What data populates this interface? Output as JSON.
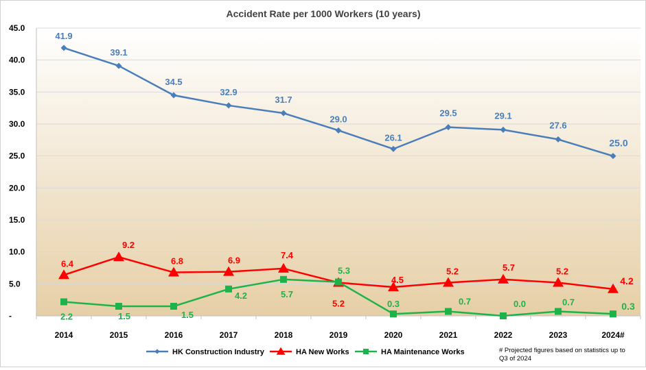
{
  "chart_data": {
    "type": "line",
    "title": "Accident Rate per 1000 Workers (10 years)",
    "categories": [
      "2014",
      "2015",
      "2016",
      "2017",
      "2018",
      "2019",
      "2020",
      "2021",
      "2022",
      "2023",
      "2024#"
    ],
    "y_tick_labels": [
      "-",
      "5.0",
      "10.0",
      "15.0",
      "20.0",
      "25.0",
      "30.0",
      "35.0",
      "40.0",
      "45.0"
    ],
    "ylim": [
      0,
      45
    ],
    "grid": true,
    "legend_position": "bottom",
    "series": [
      {
        "name": "HK Construction Industry",
        "color": "#4a7ebb",
        "marker": "diamond",
        "values": [
          41.9,
          39.1,
          34.5,
          32.9,
          31.7,
          29.0,
          26.1,
          29.5,
          29.1,
          27.6,
          25.0
        ],
        "labels": [
          "41.9",
          "39.1",
          "34.5",
          "32.9",
          "31.7",
          "29.0",
          "26.1",
          "29.5",
          "29.1",
          "27.6",
          "25.0"
        ]
      },
      {
        "name": "HA New Works",
        "color": "#ff0000",
        "marker": "triangle",
        "values": [
          6.4,
          9.2,
          6.8,
          6.9,
          7.4,
          5.2,
          4.5,
          5.2,
          5.7,
          5.2,
          4.2
        ],
        "labels": [
          "6.4",
          "9.2",
          "6.8",
          "6.9",
          "7.4",
          "5.2",
          "4.5",
          "5.2",
          "5.7",
          "5.2",
          "4.2"
        ]
      },
      {
        "name": "HA Maintenance Works",
        "color": "#1db34a",
        "marker": "square",
        "values": [
          2.2,
          1.5,
          1.5,
          4.2,
          5.7,
          5.3,
          0.3,
          0.7,
          0.0,
          0.7,
          0.3
        ],
        "labels": [
          "2.2",
          "1.5",
          "1.5",
          "4.2",
          "5.7",
          "5.3",
          "0.3",
          "0.7",
          "0.0",
          "0.7",
          "0.3"
        ]
      }
    ],
    "footnote": [
      "# Projected figures based on statistics  up to",
      "Q3 of 2024"
    ]
  }
}
